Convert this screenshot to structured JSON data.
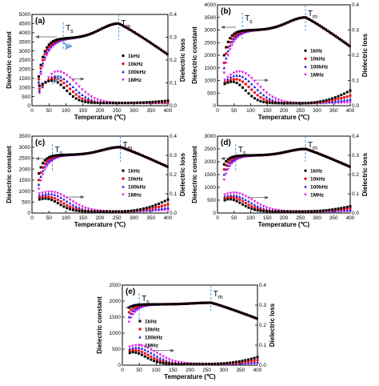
{
  "colors": {
    "1kHz": "#000000",
    "10kHz": "#e8141c",
    "100kHz": "#1a1ae6",
    "1MHz": "#e61ae6",
    "marker_line": "#3b8fd9",
    "arrow_fill": "#5b9bd5"
  },
  "chart_data": [
    {
      "type": "scatter",
      "panel": "(a)",
      "xlabel": "Temperature (℃)",
      "ylabel": "Dielectric constant",
      "y2label": "Dielectric loss",
      "xlim": [
        0,
        400
      ],
      "ylim": [
        0,
        5000
      ],
      "y2lim": [
        0,
        0.4
      ],
      "xticks": [
        0,
        50,
        100,
        150,
        200,
        250,
        300,
        350,
        400
      ],
      "yticks": [
        0,
        500,
        1000,
        1500,
        2000,
        2500,
        3000,
        3500,
        4000,
        4500,
        5000
      ],
      "y2ticks": [
        0.0,
        0.1,
        0.2,
        0.3,
        0.4
      ],
      "legend": [
        "1kHz",
        "10kHz",
        "100kHz",
        "1MHz"
      ],
      "legend_placement": "center-right",
      "Ts": 92,
      "Tm": 255,
      "eps_start": [
        1600,
        1450,
        1300,
        1150
      ],
      "eps_flat": 3700,
      "eps_peak": 4500,
      "eps_end": 2800,
      "loss_start": [
        0.085,
        0.07,
        0.06,
        0.05
      ],
      "loss_peak": [
        0.11,
        0.12,
        0.13,
        0.15
      ],
      "loss_peak_T": [
        60,
        65,
        70,
        75
      ],
      "loss_base": 0.012,
      "loss_end": [
        0.022,
        0.016,
        0.013,
        0.011
      ],
      "annotations": [
        "T",
        "s",
        "T",
        "m"
      ]
    },
    {
      "type": "scatter",
      "panel": "(b)",
      "xlabel": "Temperature (℃)",
      "ylabel": "Dielectric constant",
      "y2label": "Dielectric loss",
      "xlim": [
        0,
        400
      ],
      "ylim": [
        0,
        4000
      ],
      "y2lim": [
        0,
        0.4
      ],
      "xticks": [
        0,
        50,
        100,
        150,
        200,
        250,
        300,
        350,
        400
      ],
      "yticks": [
        0,
        500,
        1000,
        1500,
        2000,
        2500,
        3000,
        3500,
        4000
      ],
      "y2ticks": [
        0.0,
        0.1,
        0.2,
        0.3,
        0.4
      ],
      "legend": [
        "1kHz",
        "10kHz",
        "100kHz",
        "1MHz"
      ],
      "legend_placement": "center-right",
      "Ts": 75,
      "Tm": 265,
      "eps_start": [
        2000,
        1700,
        1500,
        1300
      ],
      "eps_flat": 3000,
      "eps_peak": 3500,
      "eps_end": 2350,
      "loss_start": [
        0.085,
        0.09,
        0.095,
        0.1
      ],
      "loss_peak": [
        0.095,
        0.105,
        0.12,
        0.135
      ],
      "loss_peak_T": [
        45,
        55,
        60,
        65
      ],
      "loss_base": 0.01,
      "loss_end": [
        0.06,
        0.04,
        0.025,
        0.012
      ],
      "annotations": [
        "T",
        "s",
        "T",
        "m"
      ]
    },
    {
      "type": "scatter",
      "panel": "(c)",
      "xlabel": "Temperature (℃)",
      "ylabel": "Dielectric constant",
      "y2label": "Dielectric loss",
      "xlim": [
        0,
        400
      ],
      "ylim": [
        0,
        3500
      ],
      "y2lim": [
        0,
        0.4
      ],
      "xticks": [
        0,
        50,
        100,
        150,
        200,
        250,
        300,
        350,
        400
      ],
      "yticks": [
        0,
        500,
        1000,
        1500,
        2000,
        2500,
        3000,
        3500
      ],
      "y2ticks": [
        0.0,
        0.1,
        0.2,
        0.3,
        0.4
      ],
      "legend": [
        "1kHz",
        "10kHz",
        "100kHz",
        "1MHz"
      ],
      "legend_placement": "center-right",
      "Ts": 60,
      "Tm": 260,
      "eps_start": [
        1800,
        1500,
        1300,
        1100
      ],
      "eps_flat": 2650,
      "eps_peak": 3000,
      "eps_end": 2100,
      "loss_start": [
        0.07,
        0.08,
        0.09,
        0.1
      ],
      "loss_peak": [
        0.075,
        0.085,
        0.1,
        0.11
      ],
      "loss_peak_T": [
        40,
        45,
        50,
        55
      ],
      "loss_base": 0.008,
      "loss_end": [
        0.07,
        0.045,
        0.028,
        0.015
      ],
      "annotations": [
        "T",
        "s",
        "T",
        "m"
      ]
    },
    {
      "type": "scatter",
      "panel": "(d)",
      "xlabel": "Temperature (℃)",
      "ylabel": "Dielectric constant",
      "y2label": "Dielectric loss",
      "xlim": [
        0,
        400
      ],
      "ylim": [
        0,
        3000
      ],
      "y2lim": [
        0,
        0.4
      ],
      "xticks": [
        0,
        50,
        100,
        150,
        200,
        250,
        300,
        350,
        400
      ],
      "yticks": [
        0,
        500,
        1000,
        1500,
        2000,
        2500,
        3000
      ],
      "y2ticks": [
        0.0,
        0.1,
        0.2,
        0.3,
        0.4
      ],
      "legend": [
        "1kHz",
        "10kHz",
        "100kHz",
        "1MHz"
      ],
      "legend_placement": "center-right",
      "Ts": 55,
      "Tm": 265,
      "eps_start": [
        1900,
        1700,
        1500,
        1300
      ],
      "eps_flat": 2250,
      "eps_peak": 2500,
      "eps_end": 1800,
      "loss_start": [
        0.065,
        0.075,
        0.085,
        0.095
      ],
      "loss_peak": [
        0.072,
        0.082,
        0.092,
        0.105
      ],
      "loss_peak_T": [
        35,
        40,
        45,
        50
      ],
      "loss_base": 0.008,
      "loss_end": [
        0.035,
        0.025,
        0.015,
        0.01
      ],
      "annotations": [
        "T",
        "s",
        "T",
        "m"
      ]
    },
    {
      "type": "scatter",
      "panel": "(e)",
      "xlabel": "Temperature (℃)",
      "ylabel": "Dielectric constant",
      "y2label": "Dielectric loss",
      "xlim": [
        0,
        400
      ],
      "ylim": [
        0,
        2500
      ],
      "y2lim": [
        0,
        0.4
      ],
      "xticks": [
        0,
        50,
        100,
        150,
        200,
        250,
        300,
        350,
        400
      ],
      "yticks": [
        0,
        500,
        1000,
        1500,
        2000,
        2500
      ],
      "y2ticks": [
        0.0,
        0.1,
        0.2,
        0.3,
        0.4
      ],
      "legend": [
        "1kHz",
        "10kHz",
        "100kHz",
        "1MHz"
      ],
      "legend_placement": "center-left",
      "Ts": 50,
      "Tm": 262,
      "eps_start": [
        1800,
        1650,
        1500,
        1350
      ],
      "eps_flat": 1900,
      "eps_peak": 1950,
      "eps_end": 1450,
      "loss_start": [
        0.06,
        0.07,
        0.08,
        0.09
      ],
      "loss_peak": [
        0.065,
        0.075,
        0.088,
        0.1
      ],
      "loss_peak_T": [
        30,
        35,
        40,
        45
      ],
      "loss_base": 0.006,
      "loss_end": [
        0.04,
        0.025,
        0.015,
        0.008
      ],
      "annotations": [
        "T",
        "s",
        "T",
        "m"
      ]
    }
  ]
}
